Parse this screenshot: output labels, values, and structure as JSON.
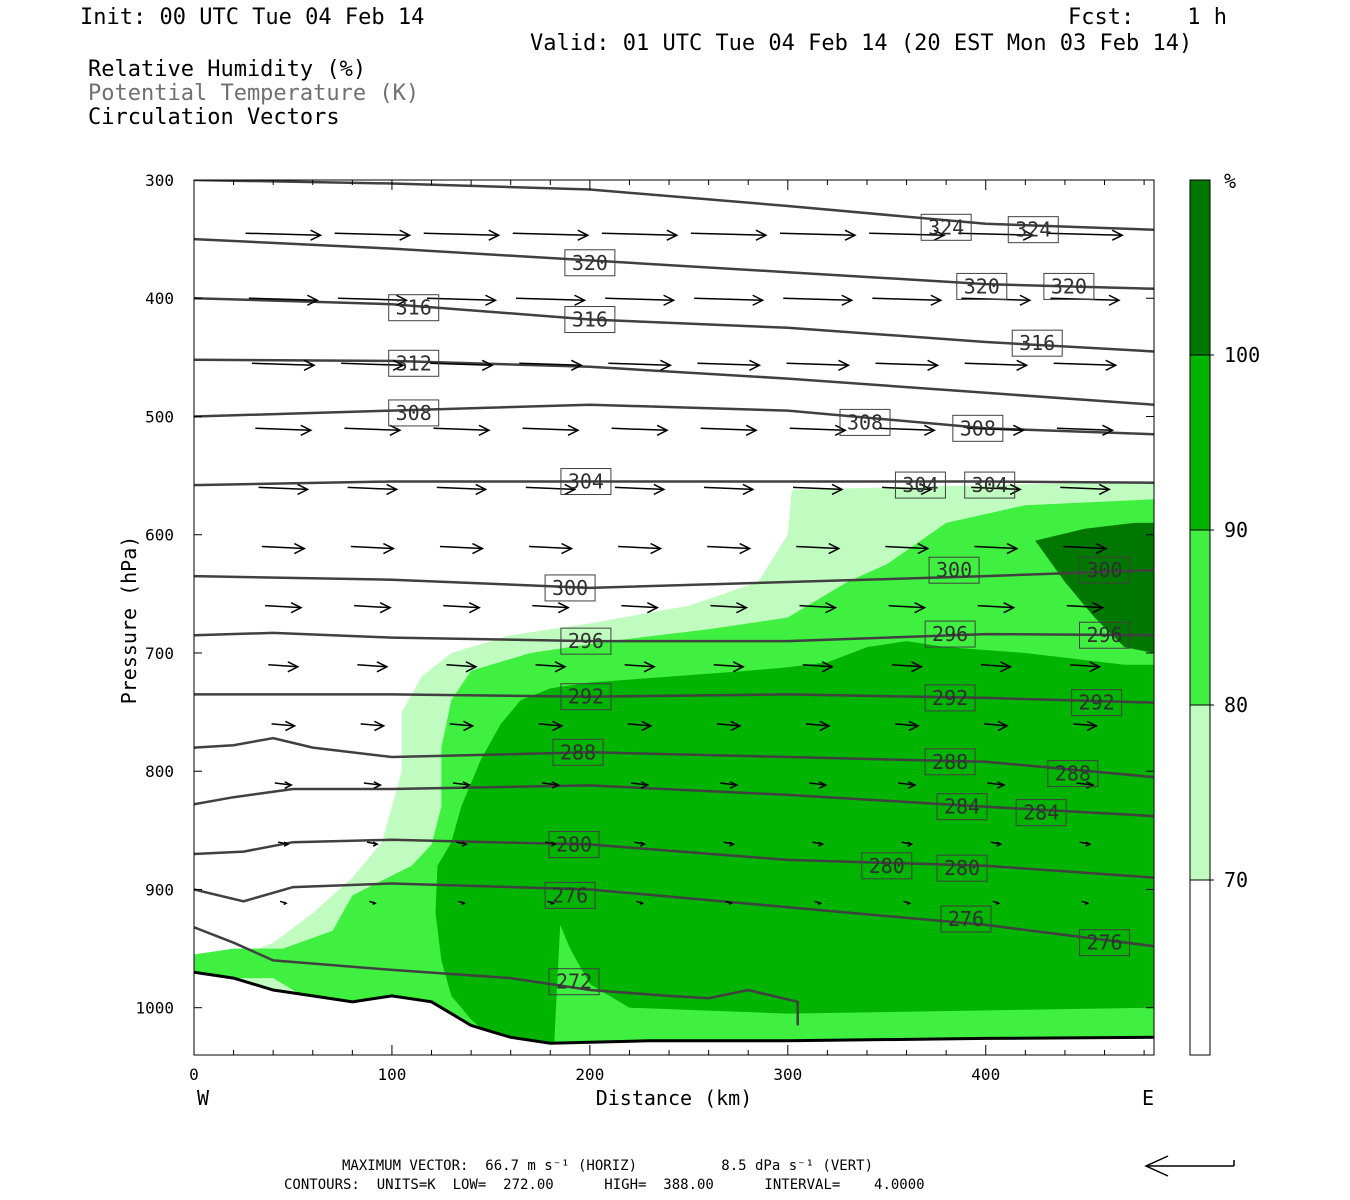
{
  "header": {
    "init": "Init: 00 UTC Tue 04 Feb 14",
    "fcst": "Fcst:    1 h",
    "valid": "Valid: 01 UTC Tue 04 Feb 14 (20 EST Mon 03 Feb 14)",
    "fields": [
      {
        "label": "Relative Humidity (%)",
        "color": "#000000"
      },
      {
        "label": "Potential Temperature (K)",
        "color": "#707070"
      },
      {
        "label": "Circulation Vectors",
        "color": "#000000"
      }
    ]
  },
  "footer": {
    "max_vector": "MAXIMUM VECTOR:  66.7 m s⁻¹ (HORIZ)          8.5 dPa s⁻¹ (VERT)",
    "contours": "CONTOURS:  UNITS=K  LOW=  272.00      HIGH=  388.00      INTERVAL=    4.0000"
  },
  "colors": {
    "rh_70": "#c0fcc0",
    "rh_80": "#40f040",
    "rh_90": "#00b400",
    "rh_100": "#007800",
    "theta": "#404040"
  },
  "chart_data": {
    "type": "cross-section",
    "xlabel": "Distance (km)",
    "ylabel": "Pressure (hPa)",
    "x_range": [
      0,
      485
    ],
    "y_range": [
      300,
      1040
    ],
    "y_reversed": true,
    "x_ticks": [
      "0",
      "100",
      "200",
      "300",
      "400"
    ],
    "x_tick_values": [
      0,
      100,
      200,
      300,
      400
    ],
    "y_ticks": [
      "300",
      "400",
      "500",
      "600",
      "700",
      "800",
      "900",
      "1000"
    ],
    "y_tick_values": [
      300,
      400,
      500,
      600,
      700,
      800,
      900,
      1000
    ],
    "x_end_labels": {
      "left": "W",
      "right": "E"
    },
    "colorbar": {
      "unit": "%",
      "levels": [
        70,
        80,
        90,
        100
      ],
      "labels": [
        "70",
        "80",
        "90",
        "100"
      ]
    },
    "rh_regions": [
      {
        "level": 70,
        "outline": [
          [
            182,
            1030
          ],
          [
            150,
            1030
          ],
          [
            120,
            1025
          ],
          [
            90,
            1018
          ],
          [
            50,
            1010
          ],
          [
            15,
            1000
          ],
          [
            0,
            995
          ],
          [
            0,
            965
          ],
          [
            20,
            958
          ],
          [
            40,
            945
          ],
          [
            60,
            920
          ],
          [
            80,
            890
          ],
          [
            95,
            860
          ],
          [
            105,
            800
          ],
          [
            105,
            750
          ],
          [
            115,
            720
          ],
          [
            130,
            700
          ],
          [
            160,
            685
          ],
          [
            200,
            675
          ],
          [
            250,
            660
          ],
          [
            285,
            640
          ],
          [
            300,
            600
          ],
          [
            302,
            562
          ],
          [
            350,
            560
          ],
          [
            485,
            555
          ],
          [
            485,
            1030
          ]
        ]
      },
      {
        "level": 80,
        "outline": [
          [
            182,
            1030
          ],
          [
            160,
            1030
          ],
          [
            140,
            1026
          ],
          [
            110,
            1020
          ],
          [
            70,
            1005
          ],
          [
            50,
            985
          ],
          [
            40,
            975
          ],
          [
            0,
            975
          ],
          [
            0,
            955
          ],
          [
            20,
            950
          ],
          [
            45,
            950
          ],
          [
            70,
            935
          ],
          [
            80,
            905
          ],
          [
            110,
            880
          ],
          [
            120,
            862
          ],
          [
            125,
            830
          ],
          [
            125,
            780
          ],
          [
            130,
            740
          ],
          [
            140,
            715
          ],
          [
            170,
            700
          ],
          [
            210,
            690
          ],
          [
            260,
            680
          ],
          [
            300,
            670
          ],
          [
            330,
            640
          ],
          [
            350,
            625
          ],
          [
            380,
            590
          ],
          [
            420,
            575
          ],
          [
            485,
            570
          ],
          [
            485,
            1030
          ]
        ]
      },
      {
        "level": 90,
        "outline": [
          [
            182,
            1030
          ],
          [
            160,
            1030
          ],
          [
            150,
            1025
          ],
          [
            140,
            1010
          ],
          [
            130,
            990
          ],
          [
            125,
            960
          ],
          [
            122,
            920
          ],
          [
            123,
            880
          ],
          [
            130,
            860
          ],
          [
            135,
            830
          ],
          [
            145,
            790
          ],
          [
            155,
            760
          ],
          [
            165,
            740
          ],
          [
            180,
            730
          ],
          [
            200,
            725
          ],
          [
            240,
            720
          ],
          [
            280,
            715
          ],
          [
            300,
            712
          ],
          [
            320,
            708
          ],
          [
            340,
            695
          ],
          [
            360,
            690
          ],
          [
            380,
            695
          ],
          [
            420,
            700
          ],
          [
            470,
            710
          ],
          [
            485,
            710
          ],
          [
            485,
            1000
          ],
          [
            300,
            1005
          ],
          [
            220,
            1000
          ],
          [
            200,
            980
          ],
          [
            190,
            950
          ],
          [
            185,
            930
          ],
          [
            182,
            1030
          ]
        ]
      },
      {
        "level": 100,
        "outline": [
          [
            425,
            605
          ],
          [
            450,
            595
          ],
          [
            475,
            590
          ],
          [
            485,
            590
          ],
          [
            485,
            700
          ],
          [
            470,
            695
          ],
          [
            455,
            670
          ],
          [
            440,
            640
          ]
        ]
      }
    ],
    "terrain": [
      [
        0,
        970
      ],
      [
        20,
        975
      ],
      [
        40,
        985
      ],
      [
        60,
        990
      ],
      [
        80,
        995
      ],
      [
        100,
        990
      ],
      [
        120,
        995
      ],
      [
        130,
        1005
      ],
      [
        140,
        1015
      ],
      [
        150,
        1020
      ],
      [
        160,
        1025
      ],
      [
        180,
        1030
      ],
      [
        230,
        1028
      ],
      [
        300,
        1028
      ],
      [
        400,
        1026
      ],
      [
        485,
        1025
      ]
    ],
    "theta_contours": [
      {
        "value": 324,
        "points": [
          [
            0,
            300
          ],
          [
            100,
            303
          ],
          [
            200,
            308
          ],
          [
            300,
            322
          ],
          [
            400,
            337
          ],
          [
            485,
            342
          ]
        ],
        "labels": [
          {
            "text": "324",
            "x": 380,
            "p": 340
          },
          {
            "text": "324",
            "x": 424,
            "p": 342
          }
        ]
      },
      {
        "value": 320,
        "points": [
          [
            0,
            350
          ],
          [
            100,
            358
          ],
          [
            200,
            368
          ],
          [
            300,
            378
          ],
          [
            400,
            388
          ],
          [
            485,
            392
          ]
        ],
        "labels": [
          {
            "text": "320",
            "x": 200,
            "p": 370
          },
          {
            "text": "320",
            "x": 398,
            "p": 390
          },
          {
            "text": "320",
            "x": 442,
            "p": 390
          }
        ]
      },
      {
        "value": 316,
        "points": [
          [
            0,
            400
          ],
          [
            100,
            405
          ],
          [
            200,
            418
          ],
          [
            300,
            425
          ],
          [
            400,
            437
          ],
          [
            485,
            445
          ]
        ],
        "labels": [
          {
            "text": "316",
            "x": 111,
            "p": 408
          },
          {
            "text": "316",
            "x": 200,
            "p": 418
          },
          {
            "text": "316",
            "x": 426,
            "p": 438
          }
        ]
      },
      {
        "value": 312,
        "points": [
          [
            0,
            452
          ],
          [
            100,
            453
          ],
          [
            200,
            458
          ],
          [
            300,
            468
          ],
          [
            400,
            480
          ],
          [
            485,
            490
          ]
        ],
        "labels": [
          {
            "text": "312",
            "x": 111,
            "p": 455
          }
        ]
      },
      {
        "value": 308,
        "points": [
          [
            0,
            500
          ],
          [
            100,
            495
          ],
          [
            200,
            490
          ],
          [
            300,
            495
          ],
          [
            400,
            510
          ],
          [
            485,
            515
          ]
        ],
        "labels": [
          {
            "text": "308",
            "x": 111,
            "p": 497
          },
          {
            "text": "308",
            "x": 339,
            "p": 505
          },
          {
            "text": "308",
            "x": 396,
            "p": 510
          }
        ]
      },
      {
        "value": 304,
        "points": [
          [
            0,
            558
          ],
          [
            100,
            555
          ],
          [
            200,
            555
          ],
          [
            300,
            555
          ],
          [
            400,
            555
          ],
          [
            485,
            556
          ]
        ],
        "labels": [
          {
            "text": "304",
            "x": 198,
            "p": 555
          },
          {
            "text": "304",
            "x": 367,
            "p": 558
          },
          {
            "text": "304",
            "x": 402,
            "p": 558
          }
        ]
      },
      {
        "value": 300,
        "points": [
          [
            0,
            635
          ],
          [
            100,
            638
          ],
          [
            200,
            645
          ],
          [
            300,
            640
          ],
          [
            400,
            635
          ],
          [
            485,
            630
          ]
        ],
        "labels": [
          {
            "text": "300",
            "x": 190,
            "p": 645
          },
          {
            "text": "300",
            "x": 384,
            "p": 630
          },
          {
            "text": "300",
            "x": 460,
            "p": 630
          }
        ]
      },
      {
        "value": 296,
        "points": [
          [
            0,
            685
          ],
          [
            40,
            683
          ],
          [
            100,
            687
          ],
          [
            200,
            690
          ],
          [
            300,
            690
          ],
          [
            400,
            684
          ],
          [
            485,
            685
          ]
        ],
        "labels": [
          {
            "text": "296",
            "x": 198,
            "p": 690
          },
          {
            "text": "296",
            "x": 382,
            "p": 684
          },
          {
            "text": "296",
            "x": 460,
            "p": 685
          }
        ]
      },
      {
        "value": 292,
        "points": [
          [
            0,
            735
          ],
          [
            100,
            735
          ],
          [
            200,
            737
          ],
          [
            300,
            735
          ],
          [
            400,
            738
          ],
          [
            485,
            742
          ]
        ],
        "labels": [
          {
            "text": "292",
            "x": 198,
            "p": 737
          },
          {
            "text": "292",
            "x": 382,
            "p": 738
          },
          {
            "text": "292",
            "x": 456,
            "p": 742
          }
        ]
      },
      {
        "value": 288,
        "points": [
          [
            0,
            780
          ],
          [
            20,
            778
          ],
          [
            40,
            772
          ],
          [
            60,
            780
          ],
          [
            100,
            788
          ],
          [
            200,
            784
          ],
          [
            300,
            788
          ],
          [
            400,
            792
          ],
          [
            485,
            805
          ]
        ],
        "labels": [
          {
            "text": "288",
            "x": 194,
            "p": 784
          },
          {
            "text": "288",
            "x": 382,
            "p": 792
          },
          {
            "text": "288",
            "x": 444,
            "p": 802
          }
        ]
      },
      {
        "value": 284,
        "points": [
          [
            0,
            828
          ],
          [
            20,
            822
          ],
          [
            50,
            815
          ],
          [
            100,
            815
          ],
          [
            200,
            812
          ],
          [
            300,
            820
          ],
          [
            400,
            830
          ],
          [
            485,
            838
          ]
        ],
        "labels": [
          {
            "text": "284",
            "x": 388,
            "p": 830
          },
          {
            "text": "284",
            "x": 428,
            "p": 835
          }
        ]
      },
      {
        "value": 280,
        "points": [
          [
            0,
            870
          ],
          [
            25,
            868
          ],
          [
            50,
            860
          ],
          [
            100,
            858
          ],
          [
            200,
            862
          ],
          [
            300,
            875
          ],
          [
            400,
            880
          ],
          [
            485,
            890
          ]
        ],
        "labels": [
          {
            "text": "280",
            "x": 192,
            "p": 862
          },
          {
            "text": "280",
            "x": 350,
            "p": 880
          },
          {
            "text": "280",
            "x": 388,
            "p": 882
          }
        ]
      },
      {
        "value": 276,
        "points": [
          [
            0,
            900
          ],
          [
            25,
            910
          ],
          [
            50,
            898
          ],
          [
            100,
            895
          ],
          [
            200,
            900
          ],
          [
            300,
            915
          ],
          [
            400,
            930
          ],
          [
            485,
            948
          ]
        ],
        "labels": [
          {
            "text": "276",
            "x": 190,
            "p": 905
          },
          {
            "text": "276",
            "x": 390,
            "p": 925
          },
          {
            "text": "276",
            "x": 460,
            "p": 945
          }
        ]
      },
      {
        "value": 272,
        "points": [
          [
            0,
            932
          ],
          [
            20,
            945
          ],
          [
            40,
            960
          ],
          [
            100,
            968
          ],
          [
            160,
            975
          ],
          [
            200,
            985
          ],
          [
            240,
            990
          ],
          [
            260,
            992
          ],
          [
            280,
            985
          ],
          [
            305,
            995
          ],
          [
            305,
            1015
          ]
        ],
        "labels": [
          {
            "text": "272",
            "x": 192,
            "p": 978
          }
        ]
      }
    ],
    "vectors_note": "circulation vectors, eastward flow aloft weakening downward"
  }
}
